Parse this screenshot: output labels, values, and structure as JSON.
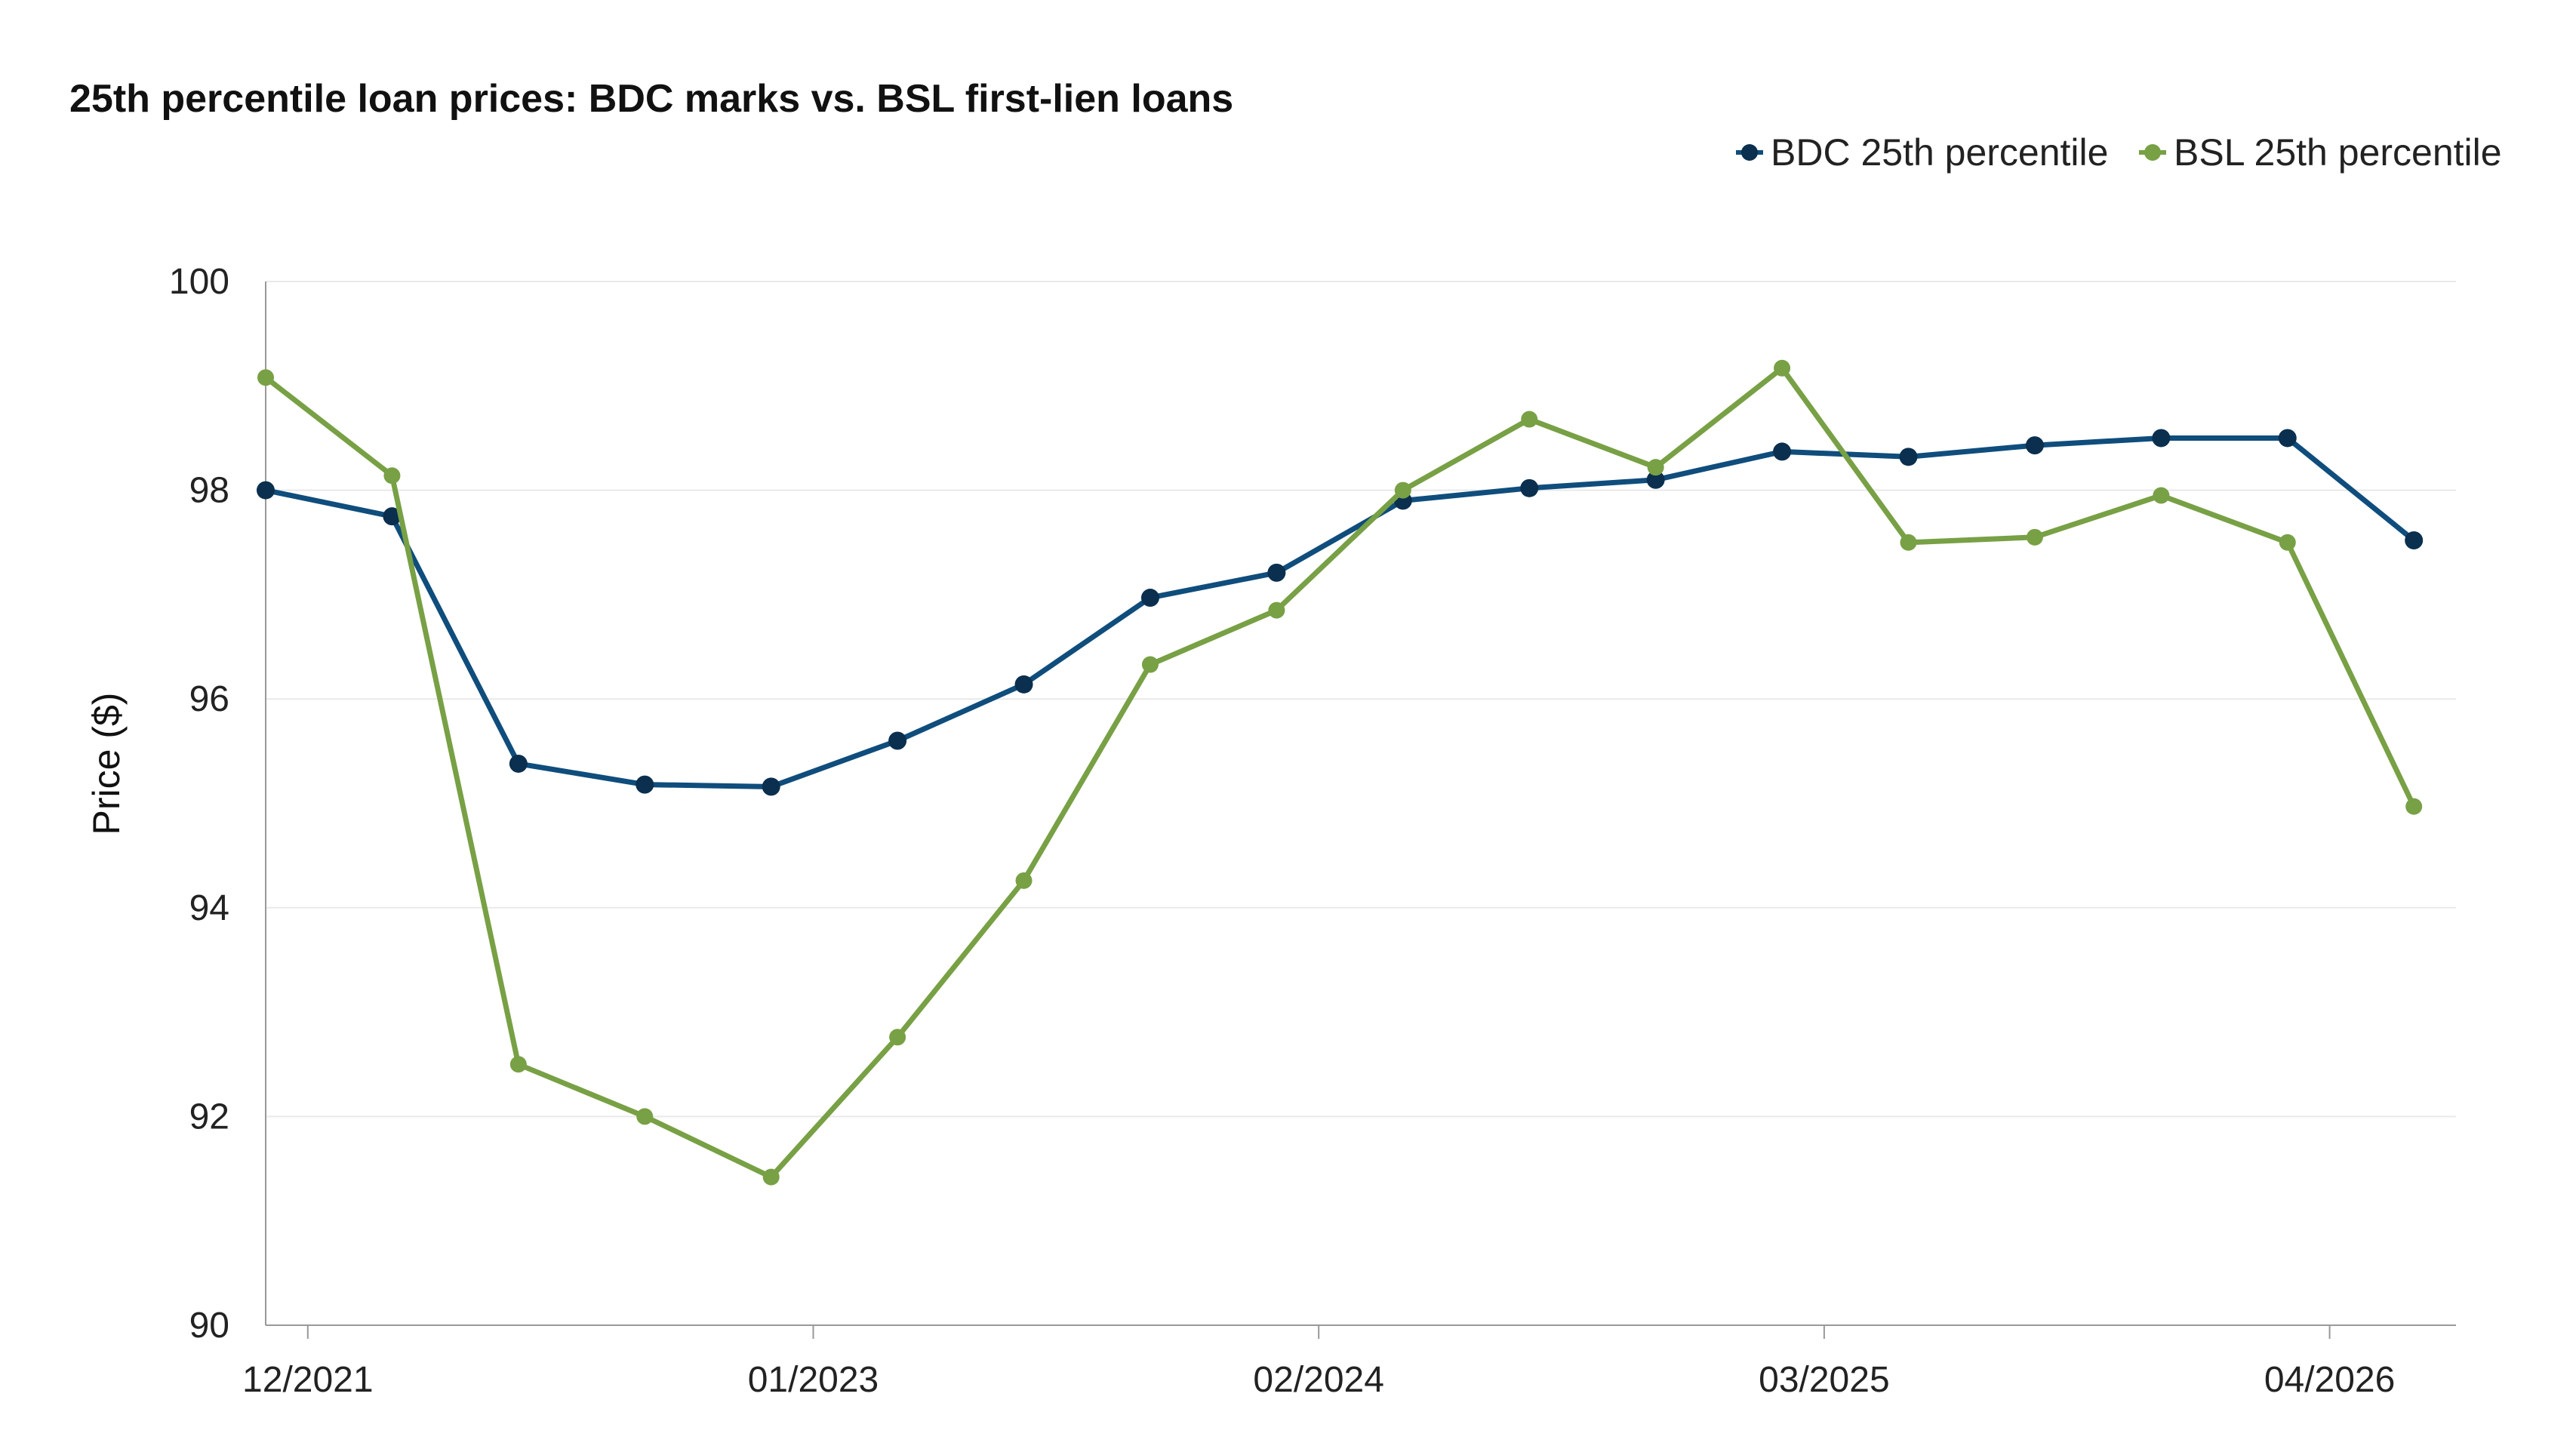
{
  "chart_data": {
    "type": "line",
    "title": "25th percentile loan prices: BDC marks vs. BSL first-lien loans",
    "xlabel": "",
    "ylabel": "Price ($)",
    "ylim": [
      90,
      100
    ],
    "yticks": [
      "90",
      "92",
      "94",
      "96",
      "98",
      "100"
    ],
    "xticks": [
      "12/2021",
      "01/2023",
      "02/2024",
      "03/2025",
      "04/2026"
    ],
    "xrange": [
      "2021-12",
      "2026-04"
    ],
    "grid": true,
    "legend_position": "top-right",
    "series": [
      {
        "name": "BDC 25th percentile",
        "color": "#0f4d7c",
        "marker_color": "#0b2f4e",
        "x": [
          "2021-12",
          "2022-03",
          "2022-06",
          "2022-09",
          "2022-12",
          "2023-03",
          "2023-06",
          "2023-09",
          "2023-12",
          "2024-03",
          "2024-06",
          "2024-09",
          "2024-12",
          "2025-03",
          "2025-06",
          "2025-09",
          "2025-12",
          "2026-03"
        ],
        "values": [
          98.0,
          97.75,
          95.38,
          95.18,
          95.16,
          95.6,
          96.14,
          96.97,
          97.21,
          97.9,
          98.02,
          98.1,
          98.37,
          98.32,
          98.43,
          98.5,
          98.5,
          97.52
        ]
      },
      {
        "name": "BSL 25th percentile",
        "color": "#78a045",
        "marker_color": "#78a045",
        "x": [
          "2021-12",
          "2022-03",
          "2022-06",
          "2022-09",
          "2022-12",
          "2023-03",
          "2023-06",
          "2023-09",
          "2023-12",
          "2024-03",
          "2024-06",
          "2024-09",
          "2024-12",
          "2025-03",
          "2025-06",
          "2025-09",
          "2025-12",
          "2026-03"
        ],
        "values": [
          99.08,
          98.14,
          92.5,
          92.0,
          91.42,
          92.76,
          94.26,
          96.33,
          96.85,
          98.0,
          98.68,
          98.22,
          99.17,
          97.5,
          97.55,
          97.95,
          97.5,
          94.97
        ]
      }
    ]
  }
}
